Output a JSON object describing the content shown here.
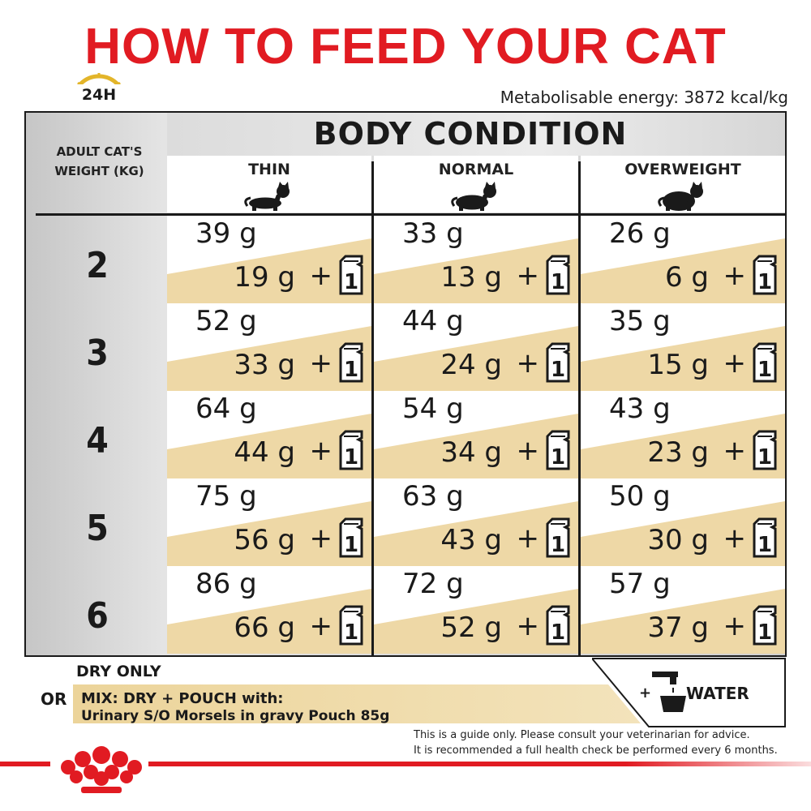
{
  "title": "HOW TO FEED YOUR CAT",
  "clock_label": "24H",
  "energy": "Metabolisable energy: 3872 kcal/kg",
  "body_condition": "BODY CONDITION",
  "weight_header": [
    "ADULT CAT'S",
    "WEIGHT (KG)"
  ],
  "columns": [
    "THIN",
    "NORMAL",
    "OVERWEIGHT"
  ],
  "weights": [
    "2",
    "3",
    "4",
    "5",
    "6"
  ],
  "rows": [
    [
      {
        "dry": "39 g",
        "mix": "19 g"
      },
      {
        "dry": "33 g",
        "mix": "13 g"
      },
      {
        "dry": "26 g",
        "mix": "6 g"
      }
    ],
    [
      {
        "dry": "52 g",
        "mix": "33 g"
      },
      {
        "dry": "44 g",
        "mix": "24 g"
      },
      {
        "dry": "35 g",
        "mix": "15 g"
      }
    ],
    [
      {
        "dry": "64 g",
        "mix": "44 g"
      },
      {
        "dry": "54 g",
        "mix": "34 g"
      },
      {
        "dry": "43 g",
        "mix": "23 g"
      }
    ],
    [
      {
        "dry": "75 g",
        "mix": "56 g"
      },
      {
        "dry": "63 g",
        "mix": "43 g"
      },
      {
        "dry": "50 g",
        "mix": "30 g"
      }
    ],
    [
      {
        "dry": "86 g",
        "mix": "66 g"
      },
      {
        "dry": "72 g",
        "mix": "52 g"
      },
      {
        "dry": "57 g",
        "mix": "37 g"
      }
    ]
  ],
  "plus": "+",
  "pouch_count": "1",
  "legend": {
    "dry_only": "DRY ONLY",
    "or": "OR",
    "mix_line1": "MIX: DRY + POUCH with:",
    "mix_line2": "Urinary S/O Morsels in gravy Pouch 85g",
    "water_plus": "+",
    "water": "WATER"
  },
  "disclaimer": [
    "This is a guide only. Please consult your veterinarian for advice.",
    "It is recommended a full health check be performed every 6 months."
  ],
  "colors": {
    "brand_red": "#e11b22",
    "tan": "#eed8a6",
    "grey": "#cfcfcf"
  },
  "icons": [
    "clock-icon",
    "cat-icon",
    "pouch-icon",
    "water-tap-icon",
    "royal-canin-crown-logo"
  ]
}
